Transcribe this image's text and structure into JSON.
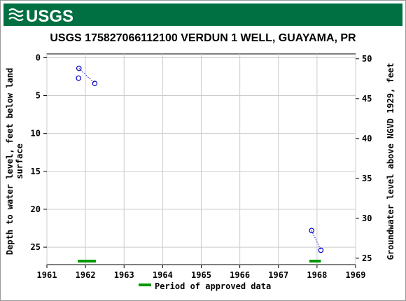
{
  "banner": {
    "logo_text": "USGS",
    "bg_color": "#006f41",
    "logo_color": "#ffffff"
  },
  "chart_data": {
    "type": "scatter",
    "title": "USGS 175827066112100 VERDUN 1 WELL, GUAYAMA, PR",
    "xlabel": "",
    "ylabel_left": "Depth to water level, feet below land surface",
    "ylabel_right": "Groundwater level above NGVD 1929, feet",
    "xlim": [
      1961,
      1969
    ],
    "ylim_left": [
      27.3,
      -0.5
    ],
    "ylim_right": [
      24.2,
      50.6
    ],
    "x_ticks": [
      1961,
      1962,
      1963,
      1964,
      1965,
      1966,
      1967,
      1968,
      1969
    ],
    "y_left_ticks": [
      0,
      5,
      10,
      15,
      20,
      25
    ],
    "y_right_ticks": [
      25,
      30,
      35,
      40,
      45,
      50
    ],
    "grid": true,
    "marker_color": "#0000cc",
    "approved_color": "#009900",
    "series": [
      {
        "points": [
          {
            "x": 1961.83,
            "y": 1.4
          },
          {
            "x": 1961.82,
            "y": 2.7
          },
          {
            "x": 1962.24,
            "y": 3.4
          }
        ],
        "connect": [
          [
            0,
            2
          ]
        ]
      },
      {
        "points": [
          {
            "x": 1967.86,
            "y": 22.8
          },
          {
            "x": 1968.1,
            "y": 25.4
          }
        ],
        "connect": [
          [
            0,
            1
          ]
        ]
      }
    ],
    "approved_periods": [
      [
        1961.8,
        1962.27
      ],
      [
        1967.8,
        1968.1
      ]
    ],
    "legend": {
      "label": "Period of approved data",
      "placement": "bottom"
    }
  }
}
